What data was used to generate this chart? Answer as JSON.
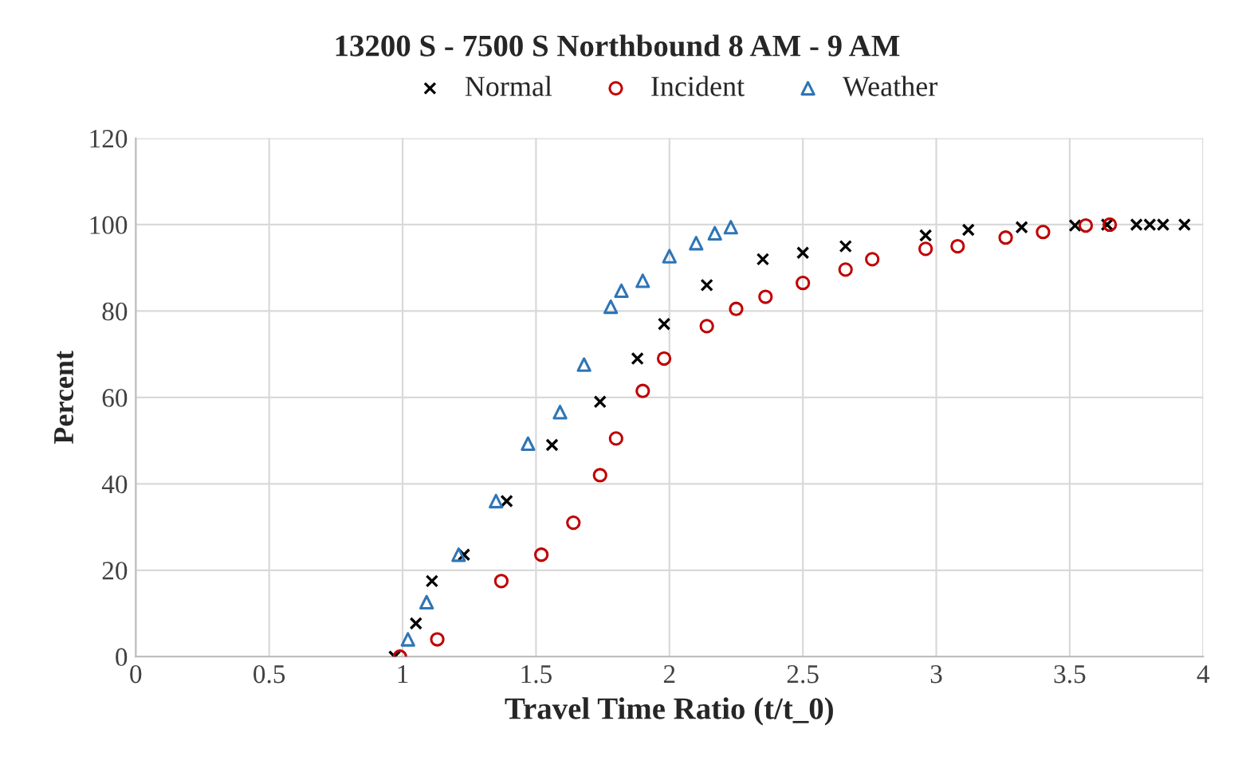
{
  "chart_data": {
    "type": "scatter",
    "title": "13200 S - 7500 S Northbound 8 AM - 9 AM",
    "xlabel": "Travel Time Ratio (t/t_0)",
    "ylabel": "Percent",
    "xlim": [
      0,
      4
    ],
    "xticks": [
      0,
      0.5,
      1,
      1.5,
      2,
      2.5,
      3,
      3.5,
      4
    ],
    "ylim": [
      0,
      120
    ],
    "yticks": [
      0,
      20,
      40,
      60,
      80,
      100,
      120
    ],
    "grid": true,
    "legend": "top",
    "series": [
      {
        "name": "Normal",
        "color": "#000000",
        "marker": "cross",
        "x": [
          0.97,
          1.05,
          1.11,
          1.23,
          1.39,
          1.56,
          1.74,
          1.88,
          1.98,
          2.14,
          2.35,
          2.5,
          2.66,
          2.96,
          3.12,
          3.32,
          3.52,
          3.64,
          3.75,
          3.8,
          3.85,
          3.93
        ],
        "values": [
          0,
          7.7,
          17.5,
          23.6,
          36,
          49,
          59,
          69,
          77,
          86,
          92,
          93.5,
          95,
          97.5,
          98.8,
          99.4,
          99.8,
          100,
          100,
          100,
          100,
          100
        ]
      },
      {
        "name": "Incident",
        "color": "#c00000",
        "marker": "circle",
        "x": [
          0.99,
          1.13,
          1.37,
          1.52,
          1.64,
          1.74,
          1.8,
          1.9,
          1.98,
          2.14,
          2.25,
          2.36,
          2.5,
          2.66,
          2.76,
          2.96,
          3.08,
          3.26,
          3.4,
          3.56,
          3.65
        ],
        "values": [
          0,
          4,
          17.5,
          23.6,
          31,
          42,
          50.5,
          61.5,
          69,
          76.5,
          80.5,
          83.3,
          86.5,
          89.6,
          92,
          94.4,
          95,
          97,
          98.3,
          99.8,
          100
        ]
      },
      {
        "name": "Weather",
        "color": "#2e75b6",
        "marker": "triangle",
        "x": [
          1.02,
          1.09,
          1.21,
          1.35,
          1.47,
          1.59,
          1.68,
          1.78,
          1.82,
          1.9,
          2.0,
          2.1,
          2.17,
          2.23
        ],
        "values": [
          4,
          12.6,
          23.6,
          36,
          49.3,
          56.6,
          67.6,
          81,
          84.7,
          87,
          92.7,
          95.7,
          98,
          99.4
        ]
      }
    ]
  }
}
